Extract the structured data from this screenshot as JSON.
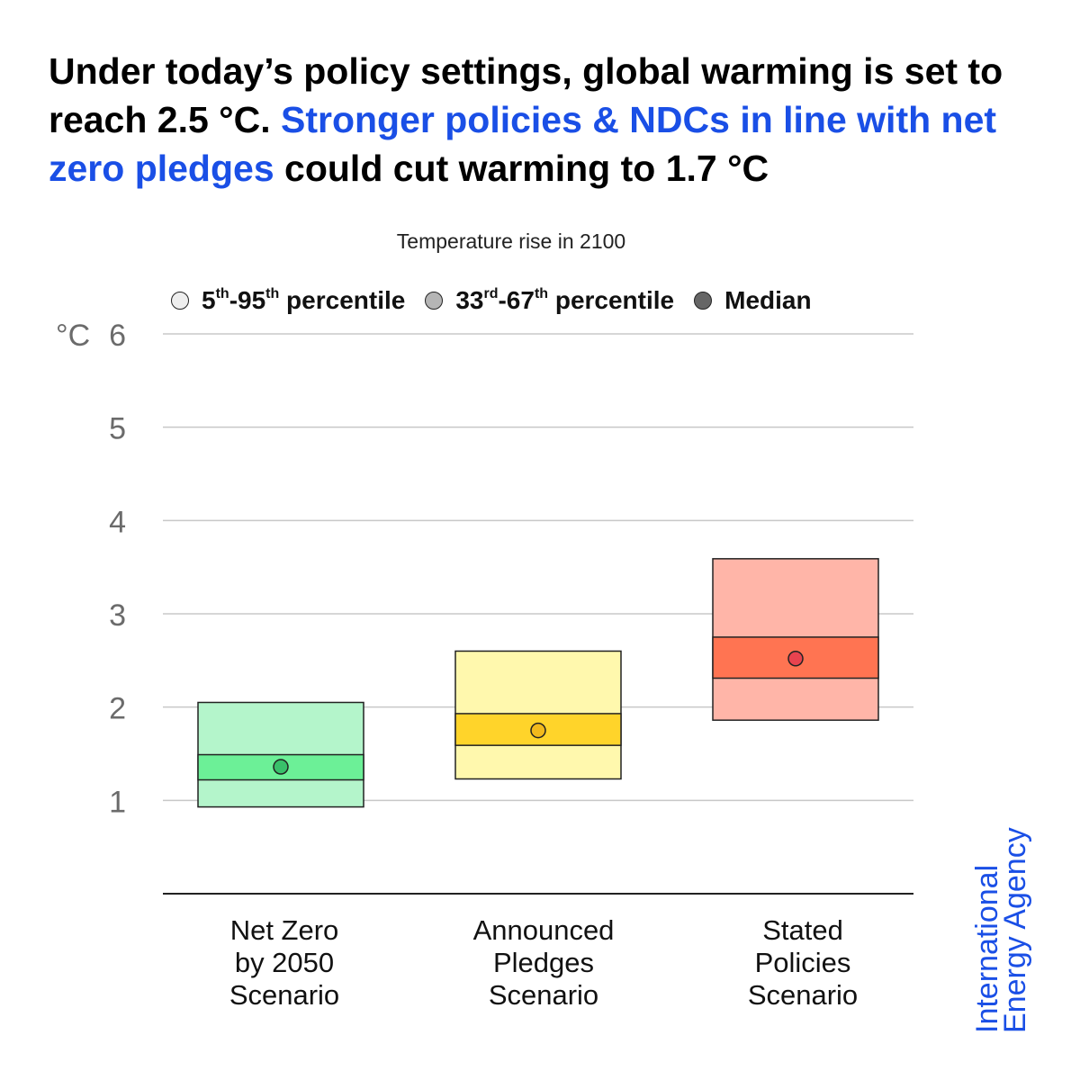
{
  "headline": {
    "part1": "Under today’s policy settings, global warming is set to reach 2.5 °C.",
    "highlight": "Stronger policies & NDCs in line with net zero pledges",
    "part2": "could cut warming to 1.7 °C"
  },
  "legend": {
    "outer": {
      "base1": "5",
      "sup1": "th",
      "dash": "-95",
      "sup2": "th",
      "rest": " percentile",
      "color": "#eeeeee"
    },
    "inner": {
      "base1": "33",
      "sup1": "rd",
      "dash": "-67",
      "sup2": "th",
      "rest": " percentile",
      "color": "#b5b5b5"
    },
    "median": {
      "label": "Median",
      "color": "#666666"
    }
  },
  "brand": {
    "line1": "International",
    "line2": "Energy Agency"
  },
  "chart_data": {
    "type": "box",
    "title": "Temperature rise in 2100",
    "ylabel": "°C",
    "ylim": [
      0,
      6
    ],
    "yticks": [
      1,
      2,
      3,
      4,
      5,
      6
    ],
    "grid": true,
    "legend_position": "top",
    "categories": [
      {
        "label": [
          "Net Zero",
          "by 2050",
          "Scenario"
        ],
        "p5": 0.93,
        "p95": 2.05,
        "p33": 1.22,
        "p67": 1.49,
        "median": 1.36,
        "outer_color": "#b4f5cb",
        "inner_color": "#6cf097",
        "median_color": "#39c06a"
      },
      {
        "label": [
          "Announced",
          "Pledges",
          "Scenario"
        ],
        "p5": 1.23,
        "p95": 2.6,
        "p33": 1.59,
        "p67": 1.93,
        "median": 1.75,
        "outer_color": "#fff8ad",
        "inner_color": "#ffd42a",
        "median_color": "#f2b91c"
      },
      {
        "label": [
          "Stated",
          "Policies",
          "Scenario"
        ],
        "p5": 1.86,
        "p95": 3.59,
        "p33": 2.31,
        "p67": 2.75,
        "median": 2.52,
        "outer_color": "#ffb5a8",
        "inner_color": "#ff7452",
        "median_color": "#e8434f"
      }
    ]
  }
}
